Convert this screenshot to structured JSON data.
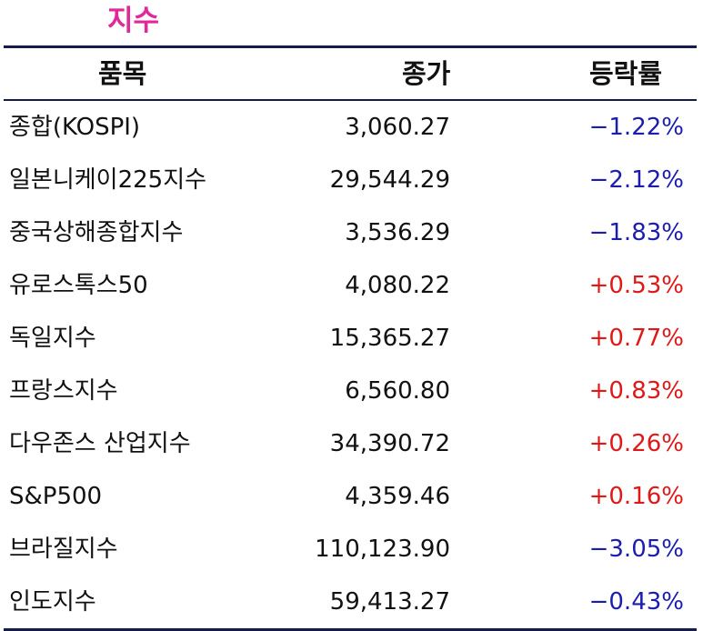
{
  "title": "지수",
  "columns": {
    "name": "품목",
    "close": "종가",
    "change": "등락률"
  },
  "rows": [
    {
      "name": "종합(KOSPI)",
      "close": "3,060.27",
      "change": "−1.22%",
      "direction": "down"
    },
    {
      "name": "일본니케이225지수",
      "close": "29,544.29",
      "change": "−2.12%",
      "direction": "down"
    },
    {
      "name": "중국상해종합지수",
      "close": "3,536.29",
      "change": "−1.83%",
      "direction": "down"
    },
    {
      "name": "유로스톡스50",
      "close": "4,080.22",
      "change": "+0.53%",
      "direction": "up"
    },
    {
      "name": "독일지수",
      "close": "15,365.27",
      "change": "+0.77%",
      "direction": "up"
    },
    {
      "name": "프랑스지수",
      "close": "6,560.80",
      "change": "+0.83%",
      "direction": "up"
    },
    {
      "name": "다우존스 산업지수",
      "close": "34,390.72",
      "change": "+0.26%",
      "direction": "up"
    },
    {
      "name": "S&P500",
      "close": "4,359.46",
      "change": "+0.16%",
      "direction": "up"
    },
    {
      "name": "브라질지수",
      "close": "110,123.90",
      "change": "−3.05%",
      "direction": "down"
    },
    {
      "name": "인도지수",
      "close": "59,413.27",
      "change": "−0.43%",
      "direction": "down"
    }
  ],
  "colors": {
    "title": "#e0289a",
    "rule": "#141c4a",
    "negative": "#1c1cb0",
    "positive": "#e01818"
  }
}
